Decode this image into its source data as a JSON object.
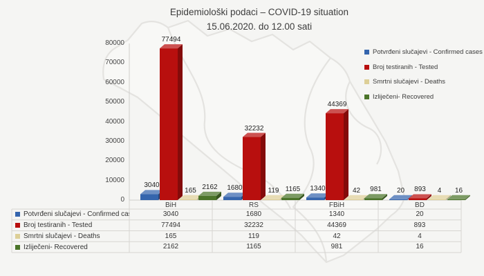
{
  "title": {
    "line1": "Epidemiološki podaci – COVID-19 situation",
    "line2": "15.06.2020. do 12.00 sati"
  },
  "chart_data": {
    "type": "bar",
    "style": "3d-clustered-columns",
    "title": "Epidemiološki podaci – COVID-19 situation 15.06.2020. do 12.00 sati",
    "categories": [
      "BiH",
      "RS",
      "FBiH",
      "BD"
    ],
    "series": [
      {
        "name": "Potvrđeni slučajevi - Confirmed cases",
        "color": "#3565ad",
        "values": [
          3040,
          1680,
          1340,
          20
        ]
      },
      {
        "name": "Broj testiranih - Tested",
        "color": "#b80f0e",
        "values": [
          77494,
          32232,
          44369,
          893
        ]
      },
      {
        "name": "Smrtni slučajevi - Deaths",
        "color": "#ddcf97",
        "values": [
          165,
          119,
          42,
          4
        ]
      },
      {
        "name": "Izliječeni- Recovered",
        "color": "#4b7429",
        "values": [
          2162,
          1165,
          981,
          16
        ]
      }
    ],
    "ylim": [
      0,
      80000
    ],
    "yticks": [
      0,
      10000,
      20000,
      30000,
      40000,
      50000,
      60000,
      70000,
      80000
    ],
    "legend_position": "right",
    "grid": false,
    "data_labels": true,
    "data_table": true,
    "background_watermark": "faint outline map of Bosnia and Herzegovina"
  },
  "colors": {
    "background": "#f5f5f3",
    "axis_line": "#cfcecb",
    "table_line": "#d6d5d2",
    "map_line": "#e4e3e0",
    "text": "#3c3c3c"
  }
}
